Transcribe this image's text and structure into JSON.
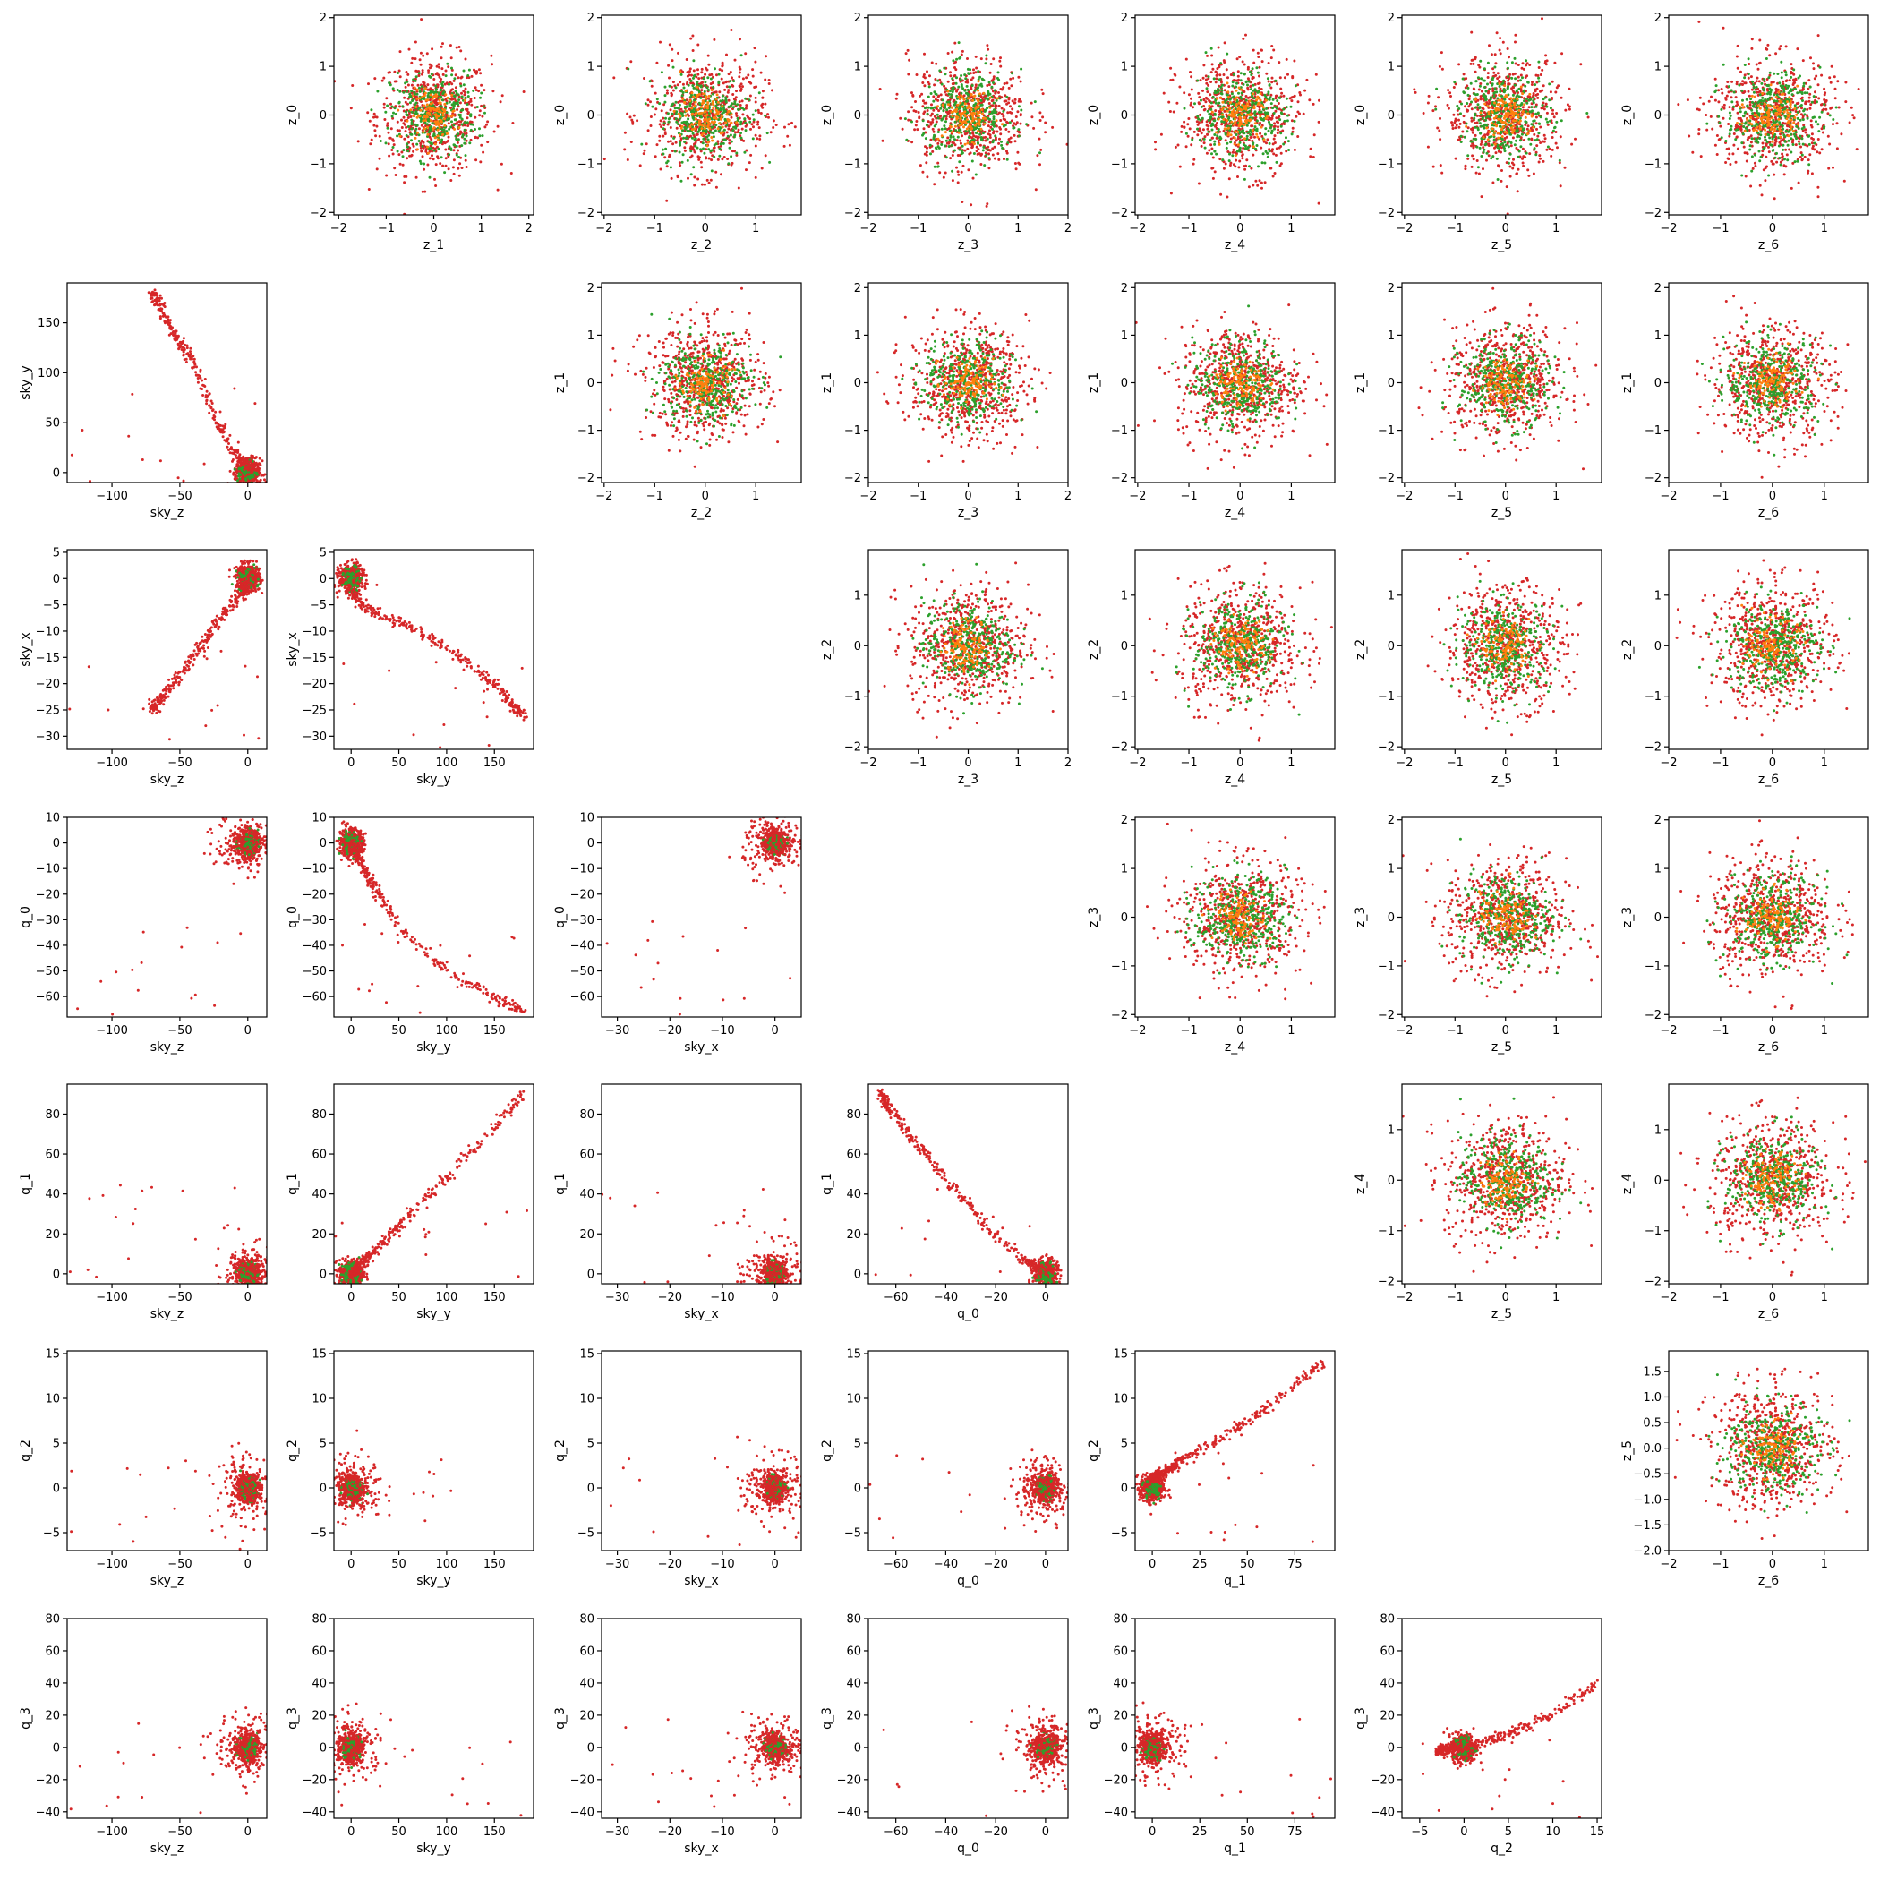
{
  "colors": {
    "orange": "#ff7f0e",
    "green": "#2ca02c",
    "red": "#d62728"
  },
  "chart_data": {
    "type": "scatter",
    "layout": "pairwise lower-triangle (data) and upper-triangle (latent) scatter matrix, 7 rows x 7 columns",
    "series_colors": [
      "#ff7f0e",
      "#2ca02c",
      "#d62728"
    ],
    "variables": {
      "data": [
        "sky_z",
        "sky_y",
        "sky_x",
        "q_0",
        "q_1",
        "q_2",
        "q_3"
      ],
      "latent": [
        "z_0",
        "z_1",
        "z_2",
        "z_3",
        "z_4",
        "z_5",
        "z_6"
      ]
    },
    "axes": {
      "z_0": {
        "lim": [
          -2.05,
          2.05
        ],
        "ticks": [
          -2,
          -1,
          0,
          1,
          2
        ]
      },
      "z_1": {
        "lim": [
          -2.1,
          2.1
        ],
        "ticks": [
          -2,
          -1,
          0,
          1,
          2
        ]
      },
      "z_2": {
        "lim": [
          -2.05,
          1.9
        ],
        "ticks": [
          -2,
          -1,
          0,
          1
        ]
      },
      "z_3": {
        "lim": [
          -2.0,
          2.0
        ],
        "ticks": [
          -2,
          -1,
          0,
          1,
          2
        ]
      },
      "z_4": {
        "lim": [
          -2.05,
          1.85
        ],
        "ticks": [
          -2,
          -1,
          0,
          1
        ]
      },
      "z_5": {
        "lim": [
          -2.05,
          1.9
        ],
        "ticks": [
          -2,
          -1,
          0,
          1
        ]
      },
      "z_6": {
        "lim": [
          -2.0,
          1.85
        ],
        "ticks": [
          -2,
          -1,
          0,
          1
        ]
      },
      "z_2_row": {
        "lim": [
          -2.05,
          1.9
        ],
        "ticks": [
          -2,
          -1,
          0,
          1
        ]
      },
      "z_3_row": {
        "lim": [
          -2.05,
          2.05
        ],
        "ticks": [
          -2,
          -1,
          0,
          1,
          2
        ]
      },
      "z_4_row": {
        "lim": [
          -2.05,
          1.9
        ],
        "ticks": [
          -2,
          -1,
          0,
          1
        ]
      },
      "z_5_row": {
        "lim": [
          -2.0,
          1.9
        ],
        "ticks": [
          "-2.0",
          "-1.5",
          "-1.0",
          "-0.5",
          "0.0",
          "0.5",
          "1.0",
          "1.5"
        ],
        "tick_values": [
          -2.0,
          -1.5,
          -1.0,
          -0.5,
          0.0,
          0.5,
          1.0,
          1.5
        ]
      },
      "sky_z": {
        "lim": [
          -133,
          14
        ],
        "ticks": [
          -100,
          -50,
          0
        ]
      },
      "sky_y": {
        "lim": [
          -18,
          191
        ],
        "ticks": [
          0,
          50,
          100,
          150
        ]
      },
      "sky_y_row": {
        "lim": [
          -10,
          190
        ],
        "ticks": [
          0,
          50,
          100,
          150
        ]
      },
      "sky_x": {
        "lim": [
          -33,
          5
        ],
        "ticks": [
          -30,
          -20,
          -10,
          0
        ]
      },
      "sky_x_row": {
        "lim": [
          -32.5,
          5.5
        ],
        "ticks": [
          -30,
          -25,
          -20,
          -15,
          -10,
          -5,
          0,
          5
        ]
      },
      "q_0": {
        "lim": [
          -71,
          9
        ],
        "ticks": [
          -60,
          -40,
          -20,
          0
        ]
      },
      "q_0_row": {
        "lim": [
          -68,
          10
        ],
        "ticks": [
          -60,
          -50,
          -40,
          -30,
          -20,
          -10,
          0,
          10
        ]
      },
      "q_1": {
        "lim": [
          -9,
          96
        ],
        "ticks": [
          0,
          25,
          50,
          75
        ]
      },
      "q_1_row": {
        "lim": [
          -5,
          95
        ],
        "ticks": [
          0,
          20,
          40,
          60,
          80
        ]
      },
      "q_2": {
        "lim": [
          -7,
          15.5
        ],
        "ticks": [
          -5,
          0,
          5,
          10,
          15
        ]
      },
      "q_2_row": {
        "lim": [
          -7,
          15.3
        ],
        "ticks": [
          -5,
          0,
          5,
          10,
          15
        ]
      },
      "q_3_row": {
        "lim": [
          -44,
          80
        ],
        "ticks": [
          -40,
          -20,
          0,
          20,
          40,
          60,
          80
        ]
      }
    },
    "panels": [
      {
        "row": 0,
        "col": 1,
        "x": "z_1",
        "y": "z_0",
        "kind": "gaussian"
      },
      {
        "row": 0,
        "col": 2,
        "x": "z_2",
        "y": "z_0",
        "kind": "gaussian"
      },
      {
        "row": 0,
        "col": 3,
        "x": "z_3",
        "y": "z_0",
        "kind": "gaussian"
      },
      {
        "row": 0,
        "col": 4,
        "x": "z_4",
        "y": "z_0",
        "kind": "gaussian"
      },
      {
        "row": 0,
        "col": 5,
        "x": "z_5",
        "y": "z_0",
        "kind": "gaussian"
      },
      {
        "row": 0,
        "col": 6,
        "x": "z_6",
        "y": "z_0",
        "kind": "gaussian"
      },
      {
        "row": 1,
        "col": 0,
        "x": "sky_z",
        "y": "sky_y",
        "kind": "data"
      },
      {
        "row": 1,
        "col": 2,
        "x": "z_2",
        "y": "z_1",
        "kind": "gaussian"
      },
      {
        "row": 1,
        "col": 3,
        "x": "z_3",
        "y": "z_1",
        "kind": "gaussian"
      },
      {
        "row": 1,
        "col": 4,
        "x": "z_4",
        "y": "z_1",
        "kind": "gaussian"
      },
      {
        "row": 1,
        "col": 5,
        "x": "z_5",
        "y": "z_1",
        "kind": "gaussian"
      },
      {
        "row": 1,
        "col": 6,
        "x": "z_6",
        "y": "z_1",
        "kind": "gaussian"
      },
      {
        "row": 2,
        "col": 0,
        "x": "sky_z",
        "y": "sky_x",
        "kind": "data"
      },
      {
        "row": 2,
        "col": 1,
        "x": "sky_y",
        "y": "sky_x",
        "kind": "data"
      },
      {
        "row": 2,
        "col": 3,
        "x": "z_3",
        "y": "z_2",
        "kind": "gaussian"
      },
      {
        "row": 2,
        "col": 4,
        "x": "z_4",
        "y": "z_2",
        "kind": "gaussian"
      },
      {
        "row": 2,
        "col": 5,
        "x": "z_5",
        "y": "z_2",
        "kind": "gaussian"
      },
      {
        "row": 2,
        "col": 6,
        "x": "z_6",
        "y": "z_2",
        "kind": "gaussian"
      },
      {
        "row": 3,
        "col": 0,
        "x": "sky_z",
        "y": "q_0",
        "kind": "data"
      },
      {
        "row": 3,
        "col": 1,
        "x": "sky_y",
        "y": "q_0",
        "kind": "data"
      },
      {
        "row": 3,
        "col": 2,
        "x": "sky_x",
        "y": "q_0",
        "kind": "data"
      },
      {
        "row": 3,
        "col": 4,
        "x": "z_4",
        "y": "z_3",
        "kind": "gaussian"
      },
      {
        "row": 3,
        "col": 5,
        "x": "z_5",
        "y": "z_3",
        "kind": "gaussian"
      },
      {
        "row": 3,
        "col": 6,
        "x": "z_6",
        "y": "z_3",
        "kind": "gaussian"
      },
      {
        "row": 4,
        "col": 0,
        "x": "sky_z",
        "y": "q_1",
        "kind": "data"
      },
      {
        "row": 4,
        "col": 1,
        "x": "sky_y",
        "y": "q_1",
        "kind": "data"
      },
      {
        "row": 4,
        "col": 2,
        "x": "sky_x",
        "y": "q_1",
        "kind": "data"
      },
      {
        "row": 4,
        "col": 3,
        "x": "q_0",
        "y": "q_1",
        "kind": "data"
      },
      {
        "row": 4,
        "col": 5,
        "x": "z_5",
        "y": "z_4",
        "kind": "gaussian"
      },
      {
        "row": 4,
        "col": 6,
        "x": "z_6",
        "y": "z_4",
        "kind": "gaussian"
      },
      {
        "row": 5,
        "col": 0,
        "x": "sky_z",
        "y": "q_2",
        "kind": "data"
      },
      {
        "row": 5,
        "col": 1,
        "x": "sky_y",
        "y": "q_2",
        "kind": "data"
      },
      {
        "row": 5,
        "col": 2,
        "x": "sky_x",
        "y": "q_2",
        "kind": "data"
      },
      {
        "row": 5,
        "col": 3,
        "x": "q_0",
        "y": "q_2",
        "kind": "data"
      },
      {
        "row": 5,
        "col": 4,
        "x": "q_1",
        "y": "q_2",
        "kind": "data"
      },
      {
        "row": 5,
        "col": 6,
        "x": "z_6",
        "y": "z_5",
        "kind": "gaussian"
      },
      {
        "row": 6,
        "col": 0,
        "x": "sky_z",
        "y": "q_3",
        "kind": "data"
      },
      {
        "row": 6,
        "col": 1,
        "x": "sky_y",
        "y": "q_3",
        "kind": "data"
      },
      {
        "row": 6,
        "col": 2,
        "x": "sky_x",
        "y": "q_3",
        "kind": "data"
      },
      {
        "row": 6,
        "col": 3,
        "x": "q_0",
        "y": "q_3",
        "kind": "data"
      },
      {
        "row": 6,
        "col": 4,
        "x": "q_1",
        "y": "q_3",
        "kind": "data"
      },
      {
        "row": 6,
        "col": 5,
        "x": "q_2",
        "y": "q_3",
        "kind": "data"
      }
    ],
    "data_relationships": {
      "description": "Data panels show a dense cluster near the origin plus curved manifolds; values estimated from the axes.",
      "sky_y_vs_sky_z": [
        [
          -70,
          180
        ],
        [
          -55,
          140
        ],
        [
          -40,
          110
        ],
        [
          -30,
          75
        ],
        [
          -20,
          45
        ],
        [
          -10,
          20
        ],
        [
          0,
          8
        ],
        [
          5,
          3
        ]
      ],
      "sky_x_vs_sky_z": [
        [
          -70,
          -25
        ],
        [
          -55,
          -20
        ],
        [
          -40,
          -15
        ],
        [
          -25,
          -9
        ],
        [
          -15,
          -6
        ],
        [
          -5,
          -3
        ],
        [
          0,
          -1
        ],
        [
          5,
          2
        ]
      ],
      "sky_x_vs_sky_y": [
        [
          180,
          -26
        ],
        [
          150,
          -20
        ],
        [
          100,
          -13
        ],
        [
          60,
          -9
        ],
        [
          30,
          -7
        ],
        [
          10,
          -5
        ],
        [
          0,
          -2
        ]
      ],
      "q_0_vs_sky_y": [
        [
          0,
          0
        ],
        [
          20,
          -15
        ],
        [
          50,
          -33
        ],
        [
          100,
          -50
        ],
        [
          150,
          -60
        ],
        [
          180,
          -66
        ]
      ],
      "q_1_vs_sky_y": [
        [
          0,
          0
        ],
        [
          25,
          12
        ],
        [
          50,
          24
        ],
        [
          100,
          48
        ],
        [
          150,
          73
        ],
        [
          180,
          90
        ]
      ],
      "q_1_vs_q_0": [
        [
          -66,
          90
        ],
        [
          -55,
          70
        ],
        [
          -40,
          48
        ],
        [
          -25,
          25
        ],
        [
          -10,
          8
        ],
        [
          0,
          1
        ]
      ],
      "q_2_vs_q_1": [
        [
          0,
          1
        ],
        [
          15,
          3
        ],
        [
          40,
          6
        ],
        [
          60,
          9
        ],
        [
          90,
          14
        ]
      ],
      "q_3_vs_q_2": [
        [
          -3,
          -2
        ],
        [
          0,
          0
        ],
        [
          5,
          8
        ],
        [
          10,
          20
        ],
        [
          15,
          40
        ]
      ]
    }
  }
}
